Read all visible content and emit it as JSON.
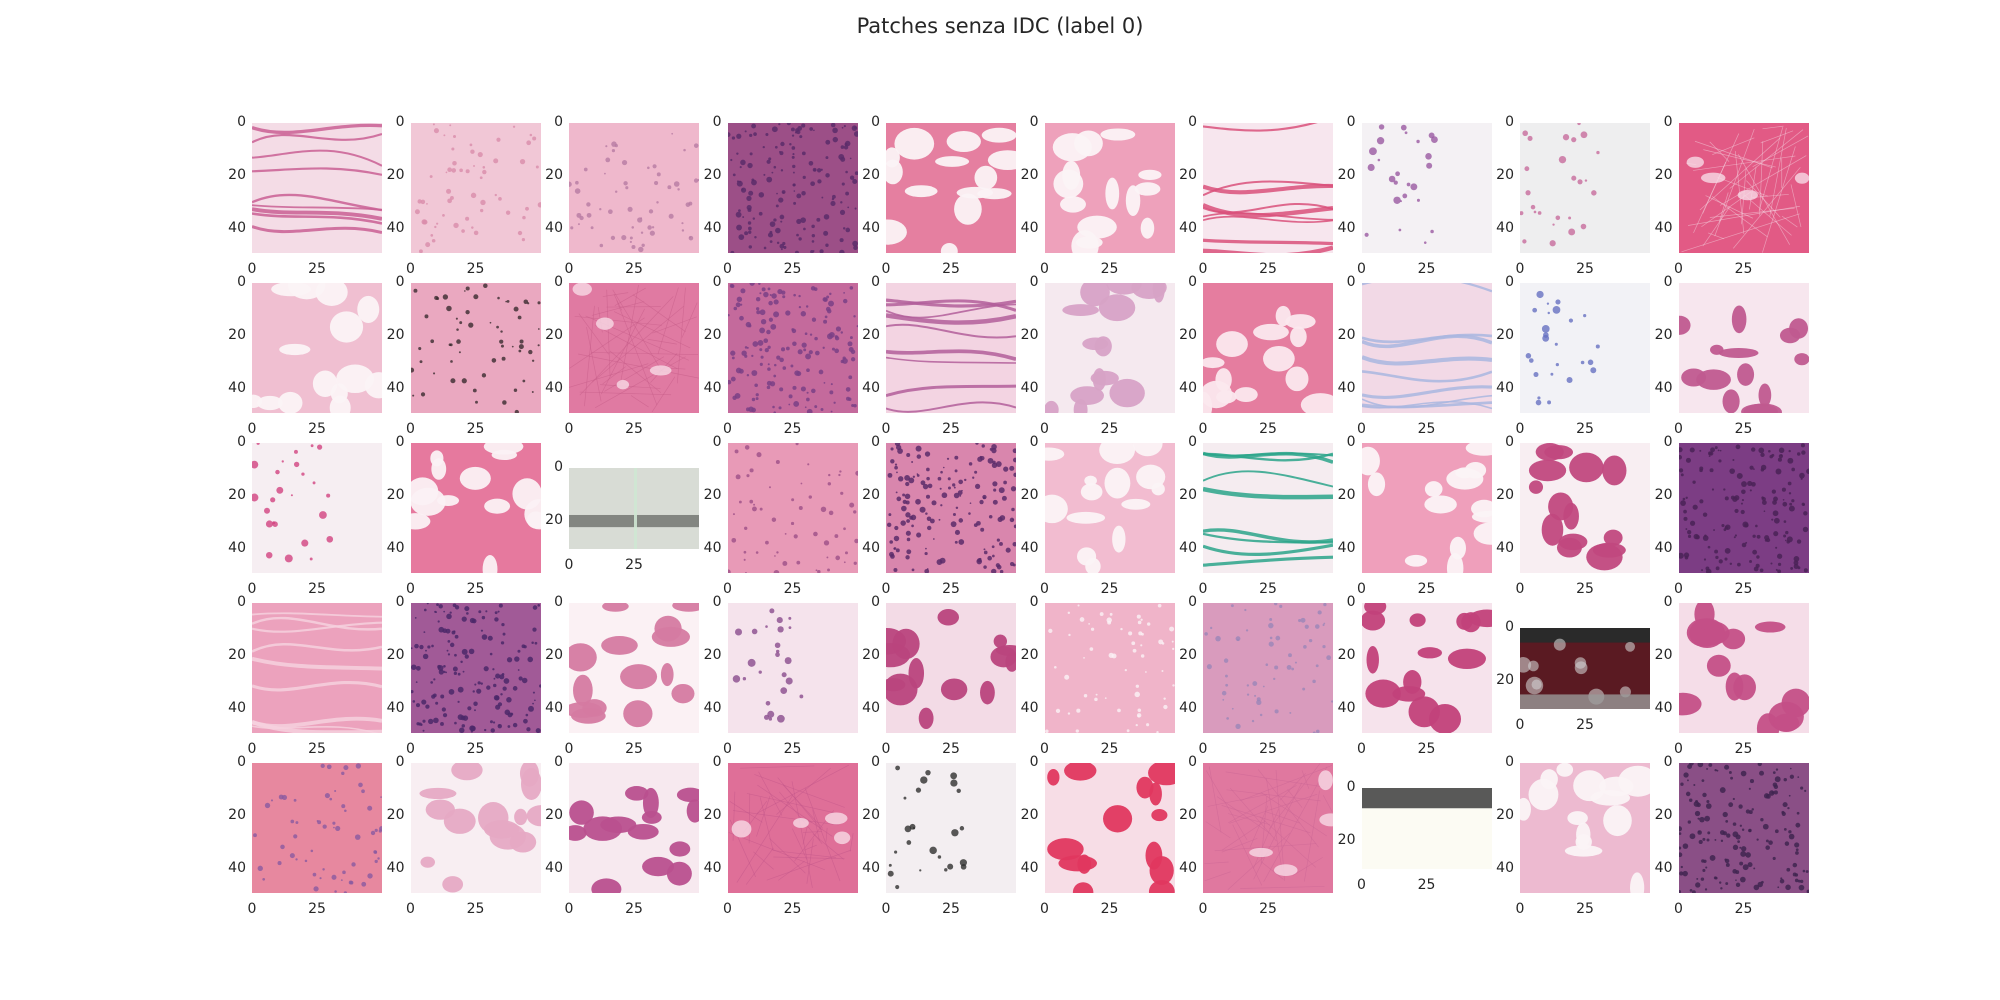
{
  "figure": {
    "title": "Patches senza IDC (label 0)"
  },
  "axes": {
    "xtick_labels": [
      "0",
      "25"
    ],
    "ytick_labels": [
      "0",
      "20",
      "40"
    ],
    "ytick_labels_short": [
      "0",
      "20"
    ]
  },
  "palette": {
    "background": "#ffffff",
    "text": "#262626",
    "stroma_pink": "#e07aa2",
    "light_pink": "#f2c4d6",
    "fat_white": "#fbf3f6",
    "nuclei_purple": "#7a3f86",
    "dark_purple": "#5b2c6a",
    "blue_stain": "#8e95d3",
    "teal_stain": "#2aa58a",
    "grey": "#c9c9c9",
    "dark_red": "#5a1a22"
  },
  "patches": [
    {
      "row": 0,
      "col": 0,
      "kind": "fibers",
      "base": "#f4dce6",
      "accent": "#c95f93",
      "square": true
    },
    {
      "row": 0,
      "col": 1,
      "kind": "dots",
      "base": "#f1c7d6",
      "accent": "#d98caa",
      "square": true
    },
    {
      "row": 0,
      "col": 2,
      "kind": "dots",
      "base": "#efb8cc",
      "accent": "#b77ba3",
      "square": true
    },
    {
      "row": 0,
      "col": 3,
      "kind": "dense",
      "base": "#9c4f87",
      "accent": "#5b2c6a",
      "square": true
    },
    {
      "row": 0,
      "col": 4,
      "kind": "fat",
      "base": "#e57fa0",
      "accent": "#fbf3f6",
      "square": true
    },
    {
      "row": 0,
      "col": 5,
      "kind": "fat",
      "base": "#eea1bb",
      "accent": "#fbf3f6",
      "square": true
    },
    {
      "row": 0,
      "col": 6,
      "kind": "fibers",
      "base": "#f7e6ee",
      "accent": "#d9507a",
      "square": true
    },
    {
      "row": 0,
      "col": 7,
      "kind": "sparse",
      "base": "#f4f1f4",
      "accent": "#9a5aa1",
      "square": true
    },
    {
      "row": 0,
      "col": 8,
      "kind": "sparse",
      "base": "#eeeeef",
      "accent": "#c76c9c",
      "square": true
    },
    {
      "row": 0,
      "col": 9,
      "kind": "stroma",
      "base": "#e25a85",
      "accent": "#f5dbe6",
      "square": true
    },
    {
      "row": 1,
      "col": 0,
      "kind": "fat",
      "base": "#f0bfd1",
      "accent": "#fbf3f6",
      "square": true
    },
    {
      "row": 1,
      "col": 1,
      "kind": "dots",
      "base": "#eaa8c0",
      "accent": "#3a2a2e",
      "square": true
    },
    {
      "row": 1,
      "col": 2,
      "kind": "stroma",
      "base": "#e07aa2",
      "accent": "#c45a86",
      "square": true
    },
    {
      "row": 1,
      "col": 3,
      "kind": "dense",
      "base": "#c46a9c",
      "accent": "#7a3f86",
      "square": true
    },
    {
      "row": 1,
      "col": 4,
      "kind": "fibers",
      "base": "#f3d4e2",
      "accent": "#b25e9a",
      "square": true
    },
    {
      "row": 1,
      "col": 5,
      "kind": "fat",
      "base": "#f5e9ef",
      "accent": "#d7a2c6",
      "square": true
    },
    {
      "row": 1,
      "col": 6,
      "kind": "fat",
      "base": "#e57d9f",
      "accent": "#fbe8ee",
      "square": true
    },
    {
      "row": 1,
      "col": 7,
      "kind": "fibers",
      "base": "#f2d9e6",
      "accent": "#a9b6df",
      "square": true
    },
    {
      "row": 1,
      "col": 8,
      "kind": "sparse",
      "base": "#f2f2f6",
      "accent": "#6670c2",
      "square": true
    },
    {
      "row": 1,
      "col": 9,
      "kind": "fat",
      "base": "#f7e6ee",
      "accent": "#c05a8f",
      "square": true
    },
    {
      "row": 2,
      "col": 0,
      "kind": "sparse",
      "base": "#f6eef2",
      "accent": "#d2427f",
      "square": true
    },
    {
      "row": 2,
      "col": 1,
      "kind": "fat",
      "base": "#e6799e",
      "accent": "#fbf1f4",
      "square": true
    },
    {
      "row": 2,
      "col": 2,
      "kind": "strip",
      "base": "#d8dcd5",
      "accent": "#6e706c",
      "square": false
    },
    {
      "row": 2,
      "col": 3,
      "kind": "dots",
      "base": "#e89ab7",
      "accent": "#9c4f87",
      "square": true
    },
    {
      "row": 2,
      "col": 4,
      "kind": "dense",
      "base": "#d986ad",
      "accent": "#5b2c6a",
      "square": true
    },
    {
      "row": 2,
      "col": 5,
      "kind": "fat",
      "base": "#f2bcd0",
      "accent": "#fbf3f6",
      "square": true
    },
    {
      "row": 2,
      "col": 6,
      "kind": "fibers",
      "base": "#f5ecf0",
      "accent": "#2aa58a",
      "square": true
    },
    {
      "row": 2,
      "col": 7,
      "kind": "fat",
      "base": "#ef9fbb",
      "accent": "#fbf3f6",
      "square": true
    },
    {
      "row": 2,
      "col": 8,
      "kind": "fat",
      "base": "#f8eef2",
      "accent": "#c1487e",
      "square": true
    },
    {
      "row": 2,
      "col": 9,
      "kind": "dense",
      "base": "#7c3d84",
      "accent": "#4a2256",
      "square": true
    },
    {
      "row": 3,
      "col": 0,
      "kind": "fibers",
      "base": "#eca2bd",
      "accent": "#f6d1de",
      "square": true
    },
    {
      "row": 3,
      "col": 1,
      "kind": "dense",
      "base": "#a15a97",
      "accent": "#4b2869",
      "square": true
    },
    {
      "row": 3,
      "col": 2,
      "kind": "fat",
      "base": "#fbf1f4",
      "accent": "#d57aa1",
      "square": true
    },
    {
      "row": 3,
      "col": 3,
      "kind": "sparse",
      "base": "#f5e3ec",
      "accent": "#8a4b8d",
      "square": true
    },
    {
      "row": 3,
      "col": 4,
      "kind": "fat",
      "base": "#f3dbe6",
      "accent": "#b9457d",
      "square": true
    },
    {
      "row": 3,
      "col": 5,
      "kind": "dots",
      "base": "#f0b4c9",
      "accent": "#fbf3f6",
      "square": true
    },
    {
      "row": 3,
      "col": 6,
      "kind": "dots",
      "base": "#d99bbd",
      "accent": "#9a86b8",
      "square": true
    },
    {
      "row": 3,
      "col": 7,
      "kind": "fat",
      "base": "#f6e3ec",
      "accent": "#c2417a",
      "square": true
    },
    {
      "row": 3,
      "col": 8,
      "kind": "dark",
      "base": "#5a1a22",
      "accent": "#cfcfcf",
      "square": false
    },
    {
      "row": 3,
      "col": 9,
      "kind": "fat",
      "base": "#f5dde8",
      "accent": "#c44f87",
      "square": true
    },
    {
      "row": 4,
      "col": 0,
      "kind": "dots",
      "base": "#e7889f",
      "accent": "#8a5aa0",
      "square": true
    },
    {
      "row": 4,
      "col": 1,
      "kind": "fat",
      "base": "#f8eef2",
      "accent": "#e6a9c4",
      "square": true
    },
    {
      "row": 4,
      "col": 2,
      "kind": "fat",
      "base": "#f7e9ef",
      "accent": "#b9508e",
      "square": true
    },
    {
      "row": 4,
      "col": 3,
      "kind": "stroma",
      "base": "#df6f98",
      "accent": "#c05489",
      "square": true
    },
    {
      "row": 4,
      "col": 4,
      "kind": "sparse",
      "base": "#f3eef1",
      "accent": "#2f2f2f",
      "square": true
    },
    {
      "row": 4,
      "col": 5,
      "kind": "fat",
      "base": "#f7dde6",
      "accent": "#e0375f",
      "square": true
    },
    {
      "row": 4,
      "col": 6,
      "kind": "stroma",
      "base": "#e0789f",
      "accent": "#c96494",
      "square": true
    },
    {
      "row": 4,
      "col": 7,
      "kind": "blank",
      "base": "#fcfbf3",
      "accent": "#3c3c3c",
      "square": false
    },
    {
      "row": 4,
      "col": 8,
      "kind": "fat",
      "base": "#edbad0",
      "accent": "#fbf3f6",
      "square": true
    },
    {
      "row": 4,
      "col": 9,
      "kind": "dense",
      "base": "#8a4f86",
      "accent": "#3f2450",
      "square": true
    }
  ]
}
